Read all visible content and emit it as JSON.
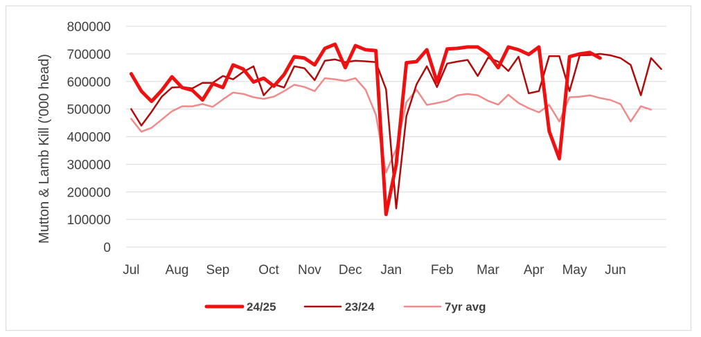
{
  "chart_data": {
    "type": "line",
    "ylabel": "Mutton & Lamb Kill ('000 head)",
    "ylim": [
      0,
      800000
    ],
    "yticks": [
      "800000",
      "700000",
      "600000",
      "500000",
      "400000",
      "300000",
      "200000",
      "100000",
      "0"
    ],
    "month_labels": [
      "Jul",
      "Aug",
      "Sep",
      "Oct",
      "Nov",
      "Dec",
      "Jan",
      "Feb",
      "Mar",
      "Apr",
      "May",
      "Jun"
    ],
    "month_week_positions": [
      0,
      4.5,
      8.5,
      13.5,
      17.5,
      21.5,
      25.5,
      30.5,
      35,
      39.5,
      43.5,
      47.5
    ],
    "x_weeks": 53,
    "grid": true,
    "legend_position": "bottom",
    "colors": {
      "24/25": "#ee1111",
      "23/24": "#b00a0a",
      "7yr avg": "#f08a8a"
    },
    "series": [
      {
        "name": "24/25",
        "values": [
          628000,
          565000,
          528000,
          568000,
          617000,
          578000,
          568000,
          533000,
          592000,
          578000,
          660000,
          645000,
          598000,
          612000,
          583000,
          625000,
          690000,
          685000,
          660000,
          720000,
          735000,
          650000,
          730000,
          715000,
          712000,
          118000,
          300000,
          668000,
          672000,
          715000,
          598000,
          718000,
          720000,
          725000,
          725000,
          700000,
          650000,
          725000,
          715000,
          698000,
          725000,
          420000,
          320000,
          690000,
          700000,
          705000,
          685000
        ]
      },
      {
        "name": "23/24",
        "values": [
          500000,
          440000,
          490000,
          545000,
          578000,
          580000,
          575000,
          595000,
          595000,
          620000,
          608000,
          635000,
          655000,
          550000,
          590000,
          578000,
          655000,
          648000,
          605000,
          675000,
          680000,
          670000,
          675000,
          673000,
          670000,
          572000,
          140000,
          475000,
          590000,
          655000,
          580000,
          665000,
          672000,
          678000,
          620000,
          686000,
          672000,
          638000,
          690000,
          557000,
          565000,
          692000,
          692000,
          565000,
          695000,
          696000,
          700000,
          695000,
          685000,
          660000,
          550000,
          685000,
          645000
        ]
      },
      {
        "name": "7yr avg",
        "values": [
          465000,
          418000,
          432000,
          462000,
          492000,
          510000,
          510000,
          518000,
          508000,
          535000,
          560000,
          555000,
          543000,
          537000,
          545000,
          565000,
          588000,
          580000,
          565000,
          612000,
          608000,
          602000,
          612000,
          570000,
          480000,
          270000,
          355000,
          525000,
          570000,
          515000,
          522000,
          530000,
          550000,
          555000,
          550000,
          530000,
          516000,
          552000,
          522000,
          503000,
          488000,
          515000,
          455000,
          543000,
          545000,
          550000,
          540000,
          533000,
          518000,
          455000,
          510000,
          498000
        ]
      }
    ]
  }
}
